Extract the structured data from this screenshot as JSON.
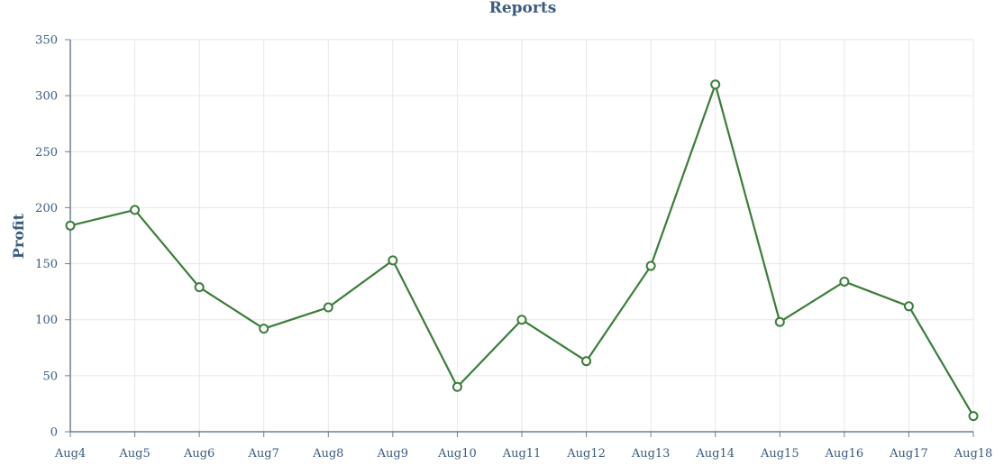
{
  "chart_data": {
    "type": "line",
    "title": "Reports",
    "xlabel": "",
    "ylabel": "Profit",
    "categories": [
      "Aug4",
      "Aug5",
      "Aug6",
      "Aug7",
      "Aug8",
      "Aug9",
      "Aug10",
      "Aug11",
      "Aug12",
      "Aug13",
      "Aug14",
      "Aug15",
      "Aug16",
      "Aug17",
      "Aug18"
    ],
    "series": [
      {
        "values": [
          184,
          198,
          129,
          92,
          111,
          153,
          40,
          100,
          63,
          148,
          310,
          98,
          134,
          112,
          14
        ],
        "color": "#3a7d3a"
      }
    ],
    "ylim": [
      0,
      350
    ],
    "yticks": [
      0,
      50,
      100,
      150,
      200,
      250,
      300,
      350
    ],
    "grid": true,
    "legend": "none",
    "colors": {
      "line": "#3a7d3a",
      "text": "#3b5b80",
      "grid": "#e6e6e6",
      "axis": "#6a7f96"
    }
  }
}
